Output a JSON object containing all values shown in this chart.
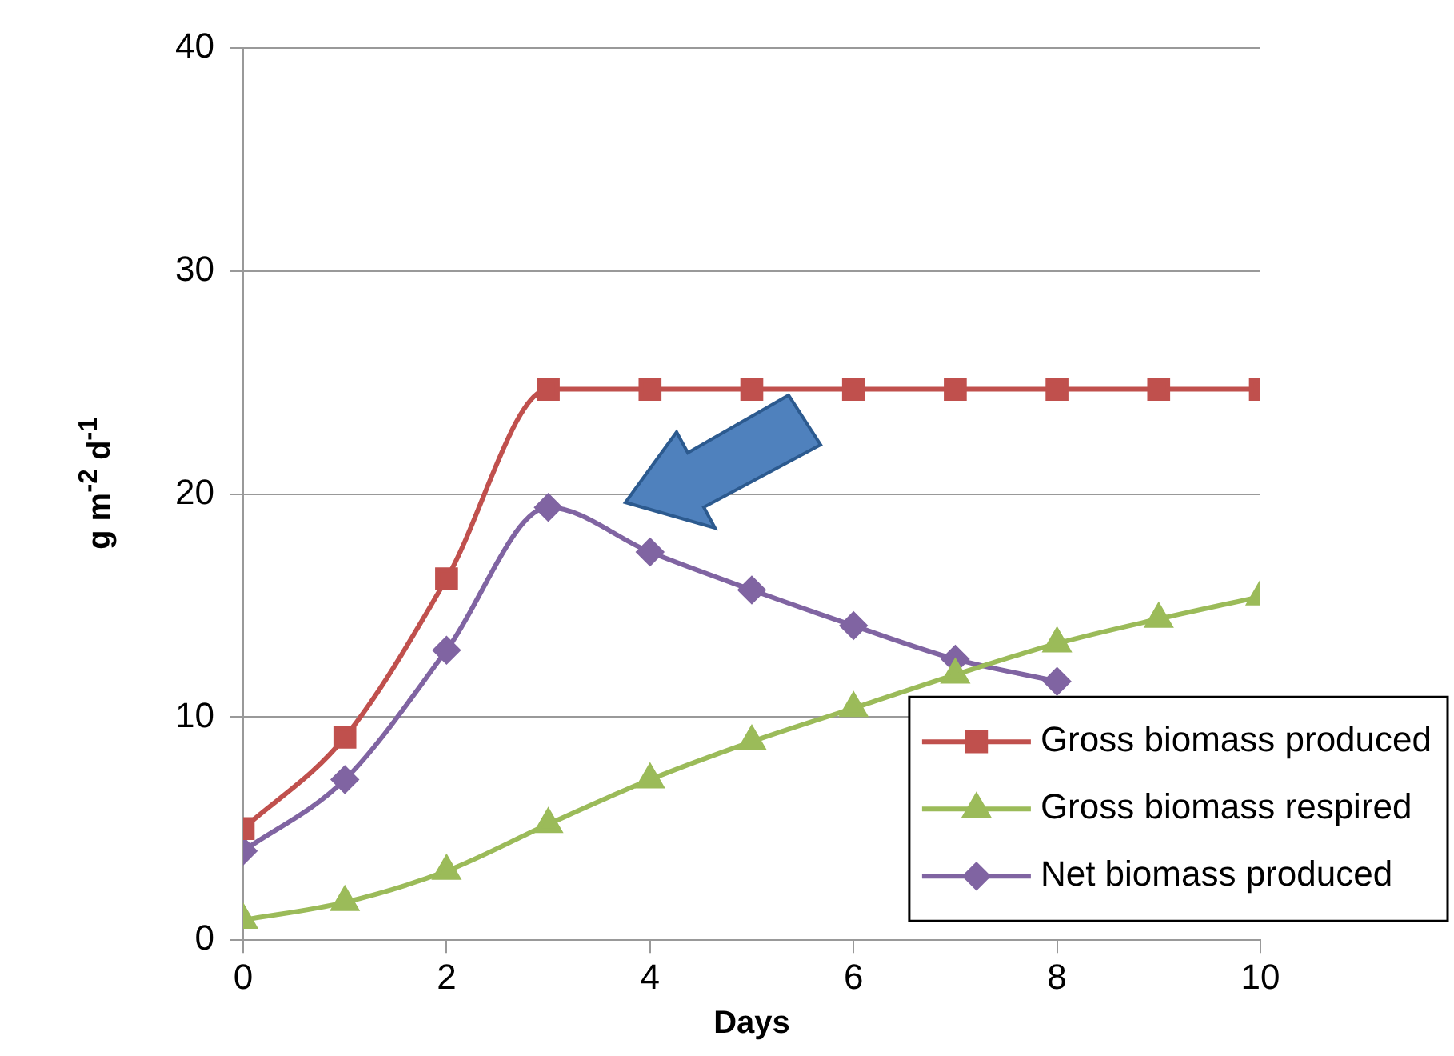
{
  "chart_data": {
    "type": "line",
    "xlabel": "Days",
    "ylabel": "g m$^{-2}$ d$^{-1}$",
    "x": [
      0,
      1,
      2,
      3,
      4,
      5,
      6,
      7,
      8,
      9,
      10
    ],
    "series": [
      {
        "name": "Gross biomass produced",
        "color": "#c0504d",
        "marker": "square",
        "values": [
          5.0,
          9.1,
          16.2,
          24.7,
          24.7,
          24.7,
          24.7,
          24.7,
          24.7,
          24.7,
          24.7
        ]
      },
      {
        "name": "Gross biomass respired",
        "color": "#9bbb59",
        "marker": "triangle",
        "values": [
          0.9,
          1.7,
          3.1,
          5.2,
          7.2,
          8.9,
          10.4,
          11.9,
          13.3,
          14.4,
          15.4
        ]
      },
      {
        "name": "Net biomass produced",
        "color": "#8064a2",
        "marker": "diamond",
        "values": [
          4.0,
          7.2,
          13.0,
          19.4,
          17.4,
          15.7,
          14.1,
          12.6,
          11.6,
          null,
          null
        ]
      }
    ],
    "xlim": [
      0,
      10
    ],
    "xticks": [
      0,
      2,
      4,
      6,
      8,
      10
    ],
    "ylim": [
      0,
      40
    ],
    "yticks": [
      0,
      10,
      20,
      30,
      40
    ],
    "grid": "y",
    "legend": "bottom right"
  }
}
